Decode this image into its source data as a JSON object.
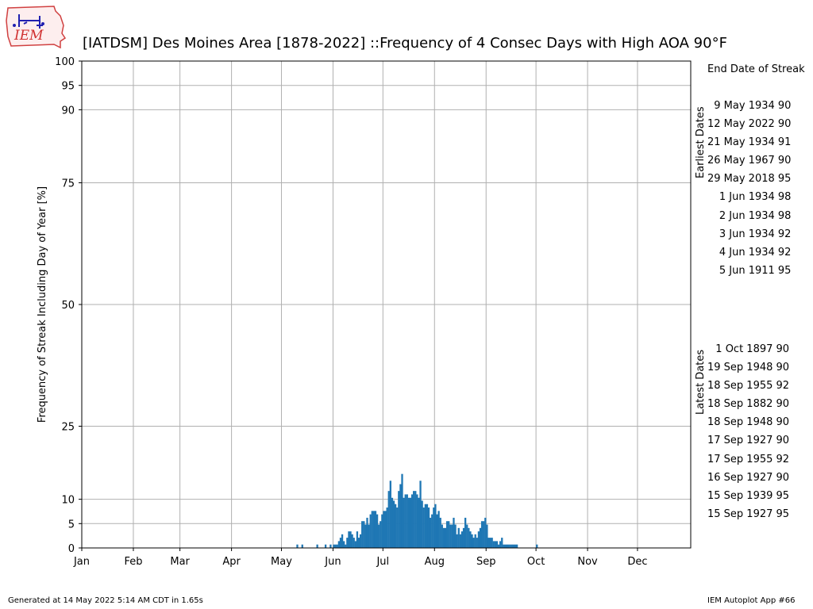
{
  "logo": {
    "text": "IEM"
  },
  "chart_data": {
    "type": "bar",
    "title": "[IATDSM] Des Moines Area [1878-2022] ::Frequency of 4 Consec Days with High AOA 90°F",
    "ylabel": "Frequency of Streak Including Day of Year [%]",
    "xlabel": "",
    "ylim": [
      0,
      100
    ],
    "xlim": [
      1,
      367
    ],
    "yticks": [
      0,
      5,
      10,
      25,
      50,
      75,
      90,
      95,
      100
    ],
    "xticks": [
      {
        "label": "Jan",
        "day": 1
      },
      {
        "label": "Feb",
        "day": 32
      },
      {
        "label": "Mar",
        "day": 60
      },
      {
        "label": "Apr",
        "day": 91
      },
      {
        "label": "May",
        "day": 121
      },
      {
        "label": "Jun",
        "day": 152
      },
      {
        "label": "Jul",
        "day": 182
      },
      {
        "label": "Aug",
        "day": 213
      },
      {
        "label": "Sep",
        "day": 244
      },
      {
        "label": "Oct",
        "day": 274
      },
      {
        "label": "Nov",
        "day": 305
      },
      {
        "label": "Dec",
        "day": 335
      }
    ],
    "grid": true,
    "bar_color": "#1f77b4",
    "x": [
      130,
      133,
      142,
      147,
      150,
      152,
      153,
      154,
      155,
      156,
      157,
      158,
      159,
      160,
      161,
      162,
      163,
      164,
      165,
      166,
      167,
      168,
      169,
      170,
      171,
      172,
      173,
      174,
      175,
      176,
      177,
      178,
      179,
      180,
      181,
      182,
      183,
      184,
      185,
      186,
      187,
      188,
      189,
      190,
      191,
      192,
      193,
      194,
      195,
      196,
      197,
      198,
      199,
      200,
      201,
      202,
      203,
      204,
      205,
      206,
      207,
      208,
      209,
      210,
      211,
      212,
      213,
      214,
      215,
      216,
      217,
      218,
      219,
      220,
      221,
      222,
      223,
      224,
      225,
      226,
      227,
      228,
      229,
      230,
      231,
      232,
      233,
      234,
      235,
      236,
      237,
      238,
      239,
      240,
      241,
      242,
      243,
      244,
      245,
      246,
      247,
      248,
      249,
      250,
      251,
      252,
      253,
      254,
      255,
      256,
      257,
      258,
      259,
      260,
      261,
      262,
      274
    ],
    "values": [
      0.7,
      0.7,
      0.7,
      0.7,
      0.7,
      0.7,
      0.7,
      0.7,
      1.4,
      2.1,
      2.8,
      1.4,
      0.7,
      2.1,
      3.4,
      3.4,
      2.8,
      2.1,
      1.4,
      3.4,
      2.1,
      2.8,
      5.5,
      5.5,
      4.8,
      6.2,
      4.8,
      6.9,
      7.6,
      7.6,
      7.6,
      6.9,
      4.8,
      5.5,
      6.9,
      7.6,
      7.6,
      8.3,
      11.7,
      13.8,
      10.3,
      9.7,
      9.0,
      8.3,
      11.7,
      13.1,
      15.2,
      10.3,
      11.0,
      11.0,
      10.3,
      10.3,
      11.0,
      11.7,
      11.7,
      11.0,
      10.3,
      13.8,
      9.7,
      8.3,
      9.0,
      9.0,
      8.3,
      6.2,
      6.9,
      8.3,
      9.0,
      6.9,
      7.6,
      6.2,
      4.8,
      4.1,
      4.1,
      5.5,
      5.5,
      4.8,
      4.8,
      6.2,
      4.8,
      2.8,
      4.1,
      2.8,
      3.4,
      4.1,
      6.2,
      4.8,
      4.1,
      3.4,
      2.8,
      2.1,
      2.8,
      2.1,
      3.4,
      4.1,
      5.5,
      5.5,
      6.2,
      4.8,
      2.1,
      2.1,
      2.1,
      1.4,
      1.4,
      1.4,
      0.7,
      1.4,
      2.1,
      0.7,
      0.7,
      0.7,
      0.7,
      0.7,
      0.7,
      0.7,
      0.7,
      0.7,
      0.7
    ]
  },
  "side": {
    "header": "End Date of Streak",
    "earliest_label": "Earliest Dates",
    "earliest": [
      "9 May 1934 90",
      "12 May 2022 90",
      "21 May 1934 91",
      "26 May 1967 90",
      "29 May 2018 95",
      "1 Jun 1934 98",
      "2 Jun 1934 98",
      "3 Jun 1934 92",
      "4 Jun 1934 92",
      "5 Jun 1911 95"
    ],
    "latest_label": "Latest Dates",
    "latest": [
      "1 Oct 1897 90",
      "19 Sep 1948 90",
      "18 Sep 1955 92",
      "18 Sep 1882 90",
      "18 Sep 1948 90",
      "17 Sep 1927 90",
      "17 Sep 1955 92",
      "16 Sep 1927 90",
      "15 Sep 1939 95",
      "15 Sep 1927 95"
    ]
  },
  "footer": {
    "left": "Generated at 14 May 2022 5:14 AM CDT in 1.65s",
    "right": "IEM Autoplot App #66"
  }
}
